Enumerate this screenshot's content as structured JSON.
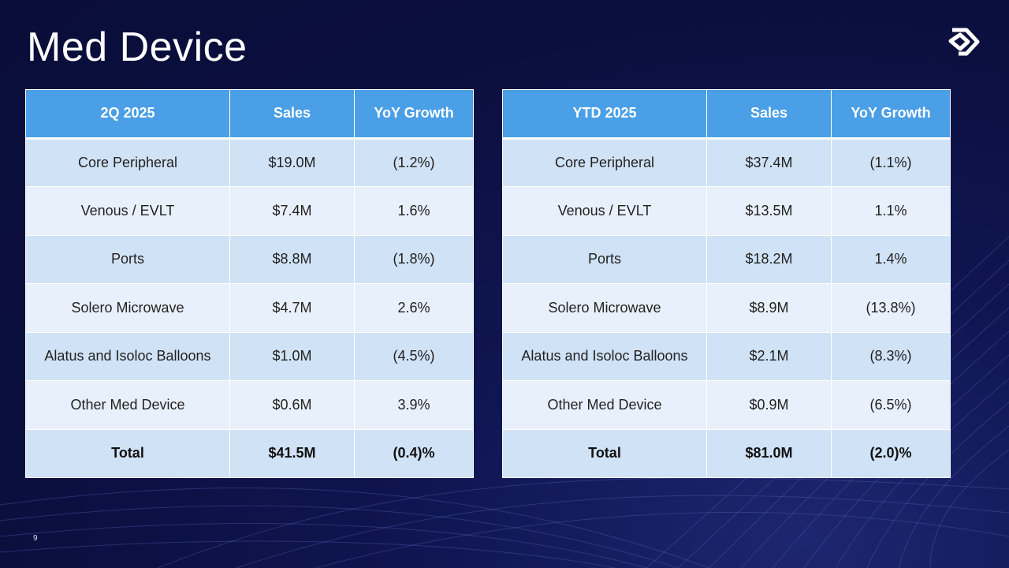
{
  "slide": {
    "title": "Med Device",
    "page_number": "9"
  },
  "tables": [
    {
      "headers": [
        "2Q 2025",
        "Sales",
        "YoY Growth"
      ],
      "rows": [
        [
          "Core Peripheral",
          "$19.0M",
          "(1.2%)"
        ],
        [
          "Venous / EVLT",
          "$7.4M",
          "1.6%"
        ],
        [
          "Ports",
          "$8.8M",
          "(1.8%)"
        ],
        [
          "Solero Microwave",
          "$4.7M",
          "2.6%"
        ],
        [
          "Alatus and Isoloc Balloons",
          "$1.0M",
          "(4.5%)"
        ],
        [
          "Other Med Device",
          "$0.6M",
          "3.9%"
        ]
      ],
      "total": [
        "Total",
        "$41.5M",
        "(0.4)%"
      ]
    },
    {
      "headers": [
        "YTD 2025",
        "Sales",
        "YoY Growth"
      ],
      "rows": [
        [
          "Core Peripheral",
          "$37.4M",
          "(1.1%)"
        ],
        [
          "Venous / EVLT",
          "$13.5M",
          "1.1%"
        ],
        [
          "Ports",
          "$18.2M",
          "1.4%"
        ],
        [
          "Solero Microwave",
          "$8.9M",
          "(13.8%)"
        ],
        [
          "Alatus and Isoloc Balloons",
          "$2.1M",
          "(8.3%)"
        ],
        [
          "Other Med Device",
          "$0.9M",
          "(6.5%)"
        ]
      ],
      "total": [
        "Total",
        "$81.0M",
        "(2.0)%"
      ]
    }
  ],
  "colors": {
    "header_bg": "#4a9fe6",
    "row_odd": "#d0e2f6",
    "row_even": "#e8f0fb",
    "background": "#0b0f3e"
  },
  "icons": {
    "logo": "company-logo-icon"
  }
}
